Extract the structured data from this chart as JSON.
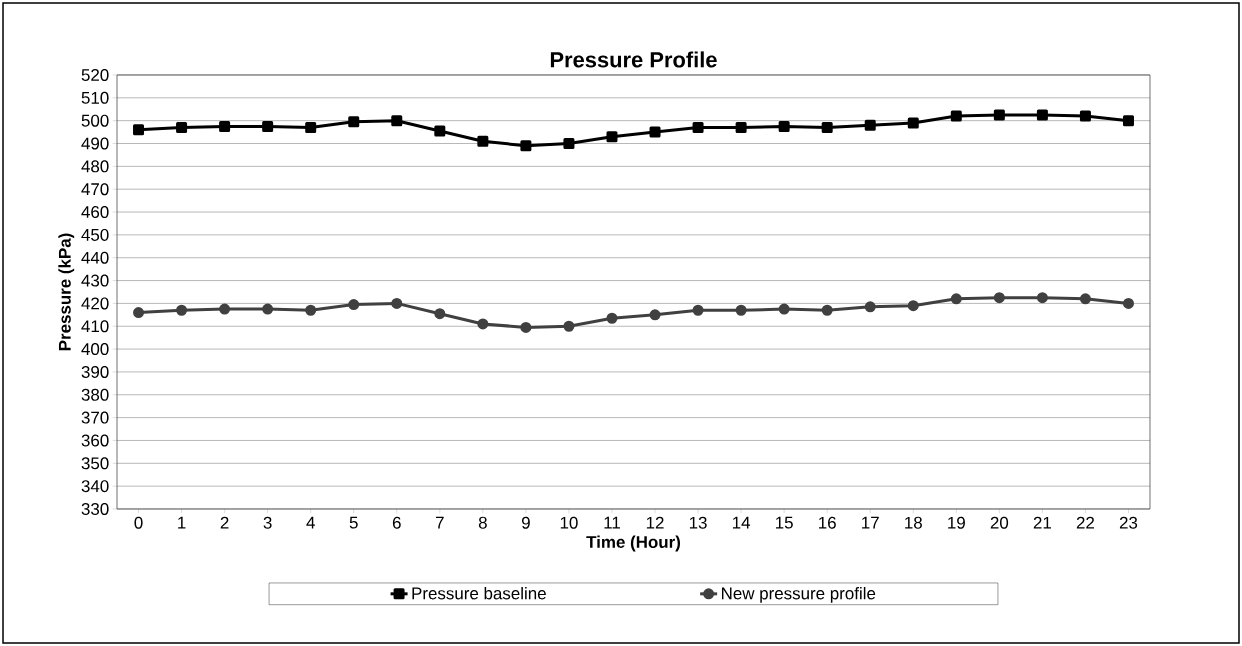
{
  "chart_data": {
    "type": "line",
    "title": "Pressure Profile",
    "xlabel": "Time (Hour)",
    "ylabel": "Pressure (kPa)",
    "categories": [
      "0",
      "1",
      "2",
      "3",
      "4",
      "5",
      "6",
      "7",
      "8",
      "9",
      "10",
      "11",
      "12",
      "13",
      "14",
      "15",
      "16",
      "17",
      "18",
      "19",
      "20",
      "21",
      "22",
      "23"
    ],
    "series": [
      {
        "name": "Pressure baseline",
        "color": "#000000",
        "marker": "square",
        "values": [
          496,
          497,
          497.5,
          497.5,
          497,
          499.5,
          500,
          495.5,
          491,
          489,
          490,
          493,
          495,
          497,
          497,
          497.5,
          497,
          498,
          499,
          502,
          502.5,
          502.5,
          502,
          500
        ]
      },
      {
        "name": "New pressure profile",
        "color": "#404040",
        "marker": "circle",
        "values": [
          416,
          417,
          417.5,
          417.5,
          417,
          419.5,
          420,
          415.5,
          411,
          409.5,
          410,
          413.5,
          415,
          417,
          417,
          417.5,
          417,
          418.5,
          419,
          422,
          422.5,
          422.5,
          422,
          420
        ]
      }
    ],
    "ylim": [
      330,
      520
    ],
    "yticks": [
      330,
      340,
      350,
      360,
      370,
      380,
      390,
      400,
      410,
      420,
      430,
      440,
      450,
      460,
      470,
      480,
      490,
      500,
      510,
      520
    ],
    "grid": "y",
    "legend": "bottom",
    "line_style": "solid"
  }
}
